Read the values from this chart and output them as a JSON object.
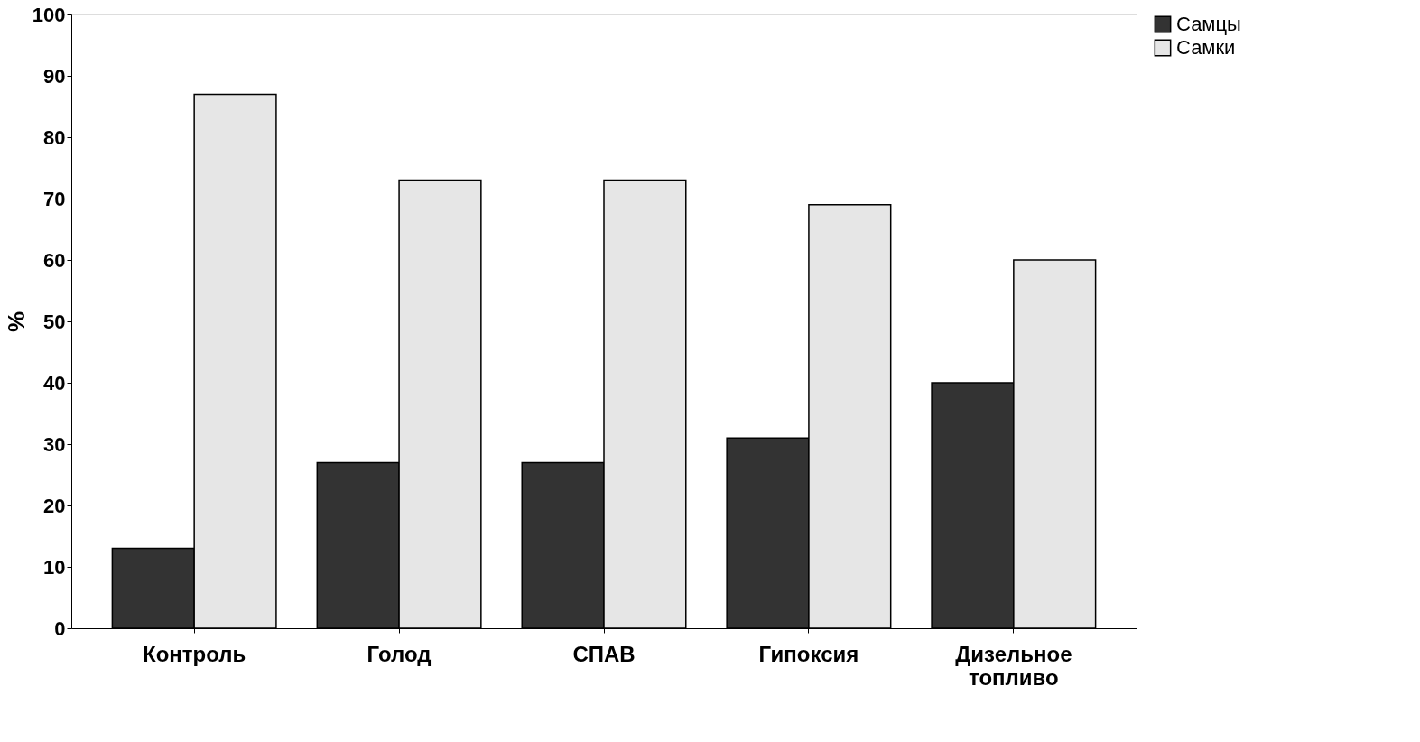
{
  "chart_data": {
    "type": "bar",
    "ylabel": "%",
    "categories": [
      "Контроль",
      "Голод",
      "СПАВ",
      "Гипоксия",
      "Дизельное топливо"
    ],
    "series": [
      {
        "name": "Самцы",
        "color": "#333333",
        "values": [
          13,
          27,
          27,
          31,
          40
        ]
      },
      {
        "name": "Самки",
        "color": "#e6e6e6",
        "values": [
          87,
          73,
          73,
          69,
          60
        ]
      }
    ],
    "ylim": [
      0,
      100
    ],
    "yticks": [
      0,
      10,
      20,
      30,
      40,
      50,
      60,
      70,
      80,
      90,
      100
    ],
    "grid": false,
    "legend": "right"
  }
}
